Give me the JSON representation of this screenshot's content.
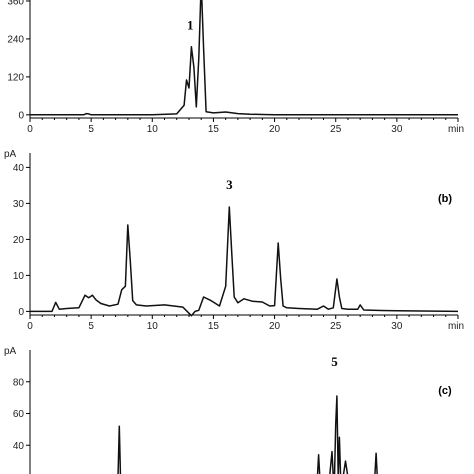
{
  "chart_data": [
    {
      "type": "line",
      "panel_label": "",
      "unit_label": "",
      "xlabel": "min",
      "xlim": [
        0,
        35
      ],
      "ylim": [
        -10,
        420
      ],
      "xticks": [
        0,
        5,
        10,
        15,
        20,
        25,
        30
      ],
      "yticks": [
        0,
        120,
        240,
        360
      ],
      "annotations": [
        {
          "text": "1",
          "x": 13.1,
          "y": 270
        }
      ],
      "series": [
        {
          "x": [
            0,
            4.4,
            4.6,
            4.8,
            5.0,
            10.0,
            12.0,
            12.6,
            12.8,
            13.0,
            13.2,
            13.4,
            13.6,
            13.8,
            14.0,
            14.2,
            14.4,
            15,
            16,
            17,
            18,
            19,
            20,
            25,
            30,
            35
          ],
          "y": [
            0,
            0,
            4,
            3,
            0,
            0,
            3,
            30,
            110,
            85,
            215,
            150,
            25,
            180,
            420,
            210,
            10,
            6,
            9,
            4,
            2,
            1,
            0,
            0,
            0,
            0
          ]
        }
      ]
    },
    {
      "type": "line",
      "panel_label": "(b)",
      "unit_label": "pA",
      "xlabel": "min",
      "xlim": [
        0,
        35
      ],
      "ylim": [
        -1,
        44
      ],
      "xticks": [
        0,
        5,
        10,
        15,
        20,
        25,
        30
      ],
      "yticks": [
        0,
        10,
        20,
        30,
        40
      ],
      "annotations": [
        {
          "text": "3",
          "x": 16.3,
          "y": 34
        }
      ],
      "series": [
        {
          "x": [
            0,
            1.8,
            2.1,
            2.4,
            3.0,
            4.0,
            4.5,
            4.8,
            5.1,
            5.4,
            5.8,
            6.5,
            7.2,
            7.5,
            7.8,
            8.0,
            8.2,
            8.4,
            8.7,
            9.5,
            11,
            12.5,
            13.2,
            13.5,
            13.8,
            14.2,
            14.8,
            15.5,
            16.0,
            16.3,
            16.5,
            16.7,
            17.0,
            17.5,
            18.2,
            19.0,
            19.6,
            20.0,
            20.3,
            20.5,
            20.7,
            21.0,
            22.0,
            23.5,
            24.0,
            24.4,
            24.8,
            25.1,
            25.3,
            25.5,
            26.0,
            26.8,
            27.0,
            27.3,
            28,
            30,
            35
          ],
          "y": [
            0,
            0,
            2.5,
            0.6,
            0.8,
            1,
            4.5,
            3.8,
            4.5,
            3.2,
            2.2,
            1.5,
            2,
            6,
            7,
            24,
            14,
            3,
            1.8,
            1.5,
            1.8,
            1.2,
            -1.2,
            0,
            0.3,
            4,
            3,
            1.5,
            7,
            29,
            16,
            4,
            2.4,
            3.5,
            2.8,
            2.6,
            1.5,
            1.6,
            19,
            9,
            1.5,
            1,
            0.8,
            0.6,
            1.5,
            0.6,
            1,
            9,
            4,
            0.8,
            0.6,
            0.6,
            1.8,
            0.4,
            0.3,
            0.2,
            0
          ]
        }
      ]
    },
    {
      "type": "line",
      "panel_label": "(c)",
      "unit_label": "pA",
      "xlabel": "",
      "xlim": [
        0,
        35
      ],
      "ylim": [
        20,
        100
      ],
      "xticks": [],
      "yticks": [
        40,
        60,
        80
      ],
      "annotations": [
        {
          "text": "5",
          "x": 24.9,
          "y": 90
        }
      ],
      "series": [
        {
          "x": [
            0,
            7.2,
            7.3,
            7.4,
            20,
            23.5,
            23.6,
            23.7,
            24.5,
            24.7,
            24.8,
            24.9,
            25.0,
            25.1,
            25.2,
            25.3,
            25.4,
            25.6,
            25.8,
            26.0,
            28.2,
            28.3,
            28.4,
            35
          ],
          "y": [
            20,
            20,
            52,
            20,
            20,
            20,
            34,
            20,
            20,
            36,
            20,
            20,
            53,
            71,
            20,
            45,
            20,
            20,
            30,
            20,
            20,
            35,
            20,
            20
          ]
        }
      ]
    }
  ]
}
